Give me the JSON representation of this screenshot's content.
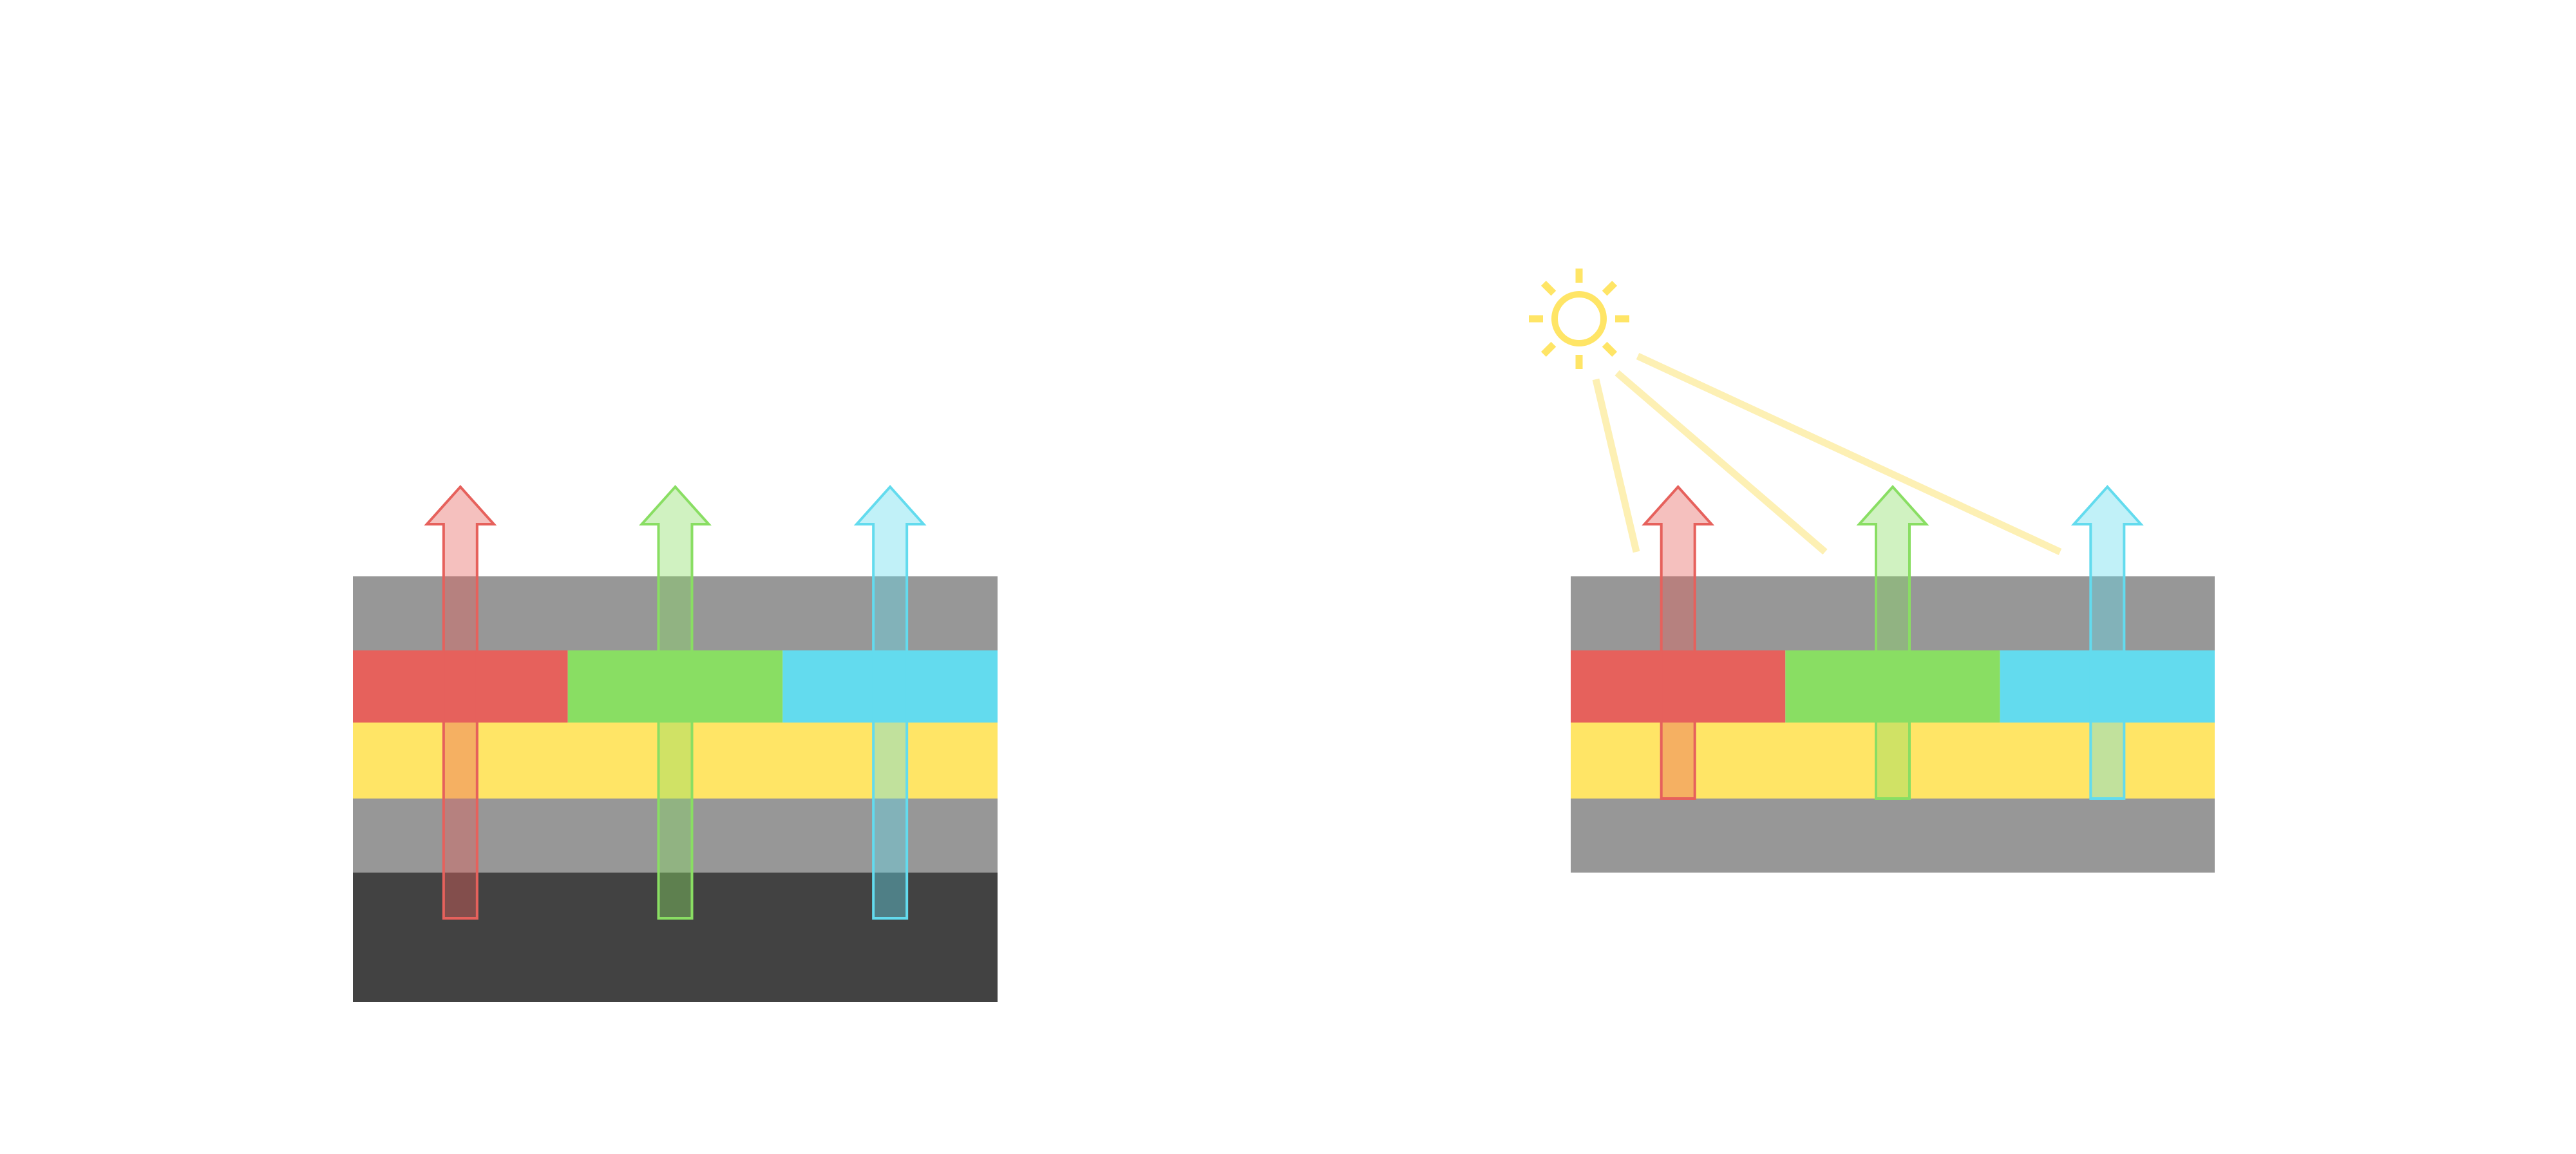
{
  "colors": {
    "gray_layer": "#979797",
    "dark_layer": "#424242",
    "red": "#e6615c",
    "green": "#89de63",
    "cyan": "#63dbee",
    "yellow": "#ffe566",
    "light_beam": "#fdf0b4"
  },
  "left_stack": {
    "layers": [
      "gray",
      "red-green-cyan",
      "yellow",
      "gray",
      "dark"
    ],
    "arrows": [
      "red",
      "green",
      "cyan"
    ]
  },
  "right_stack": {
    "layers": [
      "gray",
      "red-green-cyan",
      "yellow",
      "gray"
    ],
    "arrows": [
      "red",
      "green",
      "cyan"
    ],
    "light_source": "sun-icon",
    "light_beams": 3
  }
}
